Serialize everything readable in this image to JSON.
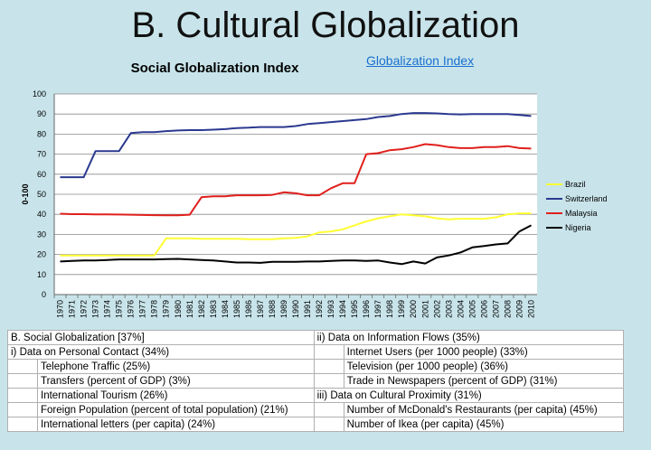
{
  "slide": {
    "title": "B. Cultural Globalization",
    "link": "Globalization Index"
  },
  "chart_data": {
    "type": "line",
    "title": "Social Globalization Index",
    "xlabel": "",
    "ylabel": "0-100",
    "ylim": [
      0,
      100
    ],
    "yticks": [
      0,
      10,
      20,
      30,
      40,
      50,
      60,
      70,
      80,
      90,
      100
    ],
    "grid": true,
    "legend_position": "right",
    "x": [
      "1970",
      "1971",
      "1972",
      "1973",
      "1974",
      "1975",
      "1976",
      "1977",
      "1978",
      "1979",
      "1980",
      "1981",
      "1982",
      "1983",
      "1984",
      "1985",
      "1986",
      "1987",
      "1988",
      "1989",
      "1990",
      "1991",
      "1992",
      "1993",
      "1994",
      "1995",
      "1996",
      "1997",
      "1998",
      "1999",
      "2000",
      "2001",
      "2002",
      "2003",
      "2004",
      "2005",
      "2006",
      "2007",
      "2008",
      "2009",
      "2010"
    ],
    "series": [
      {
        "name": "Brazil",
        "color": "#ffff33",
        "values": [
          19.5,
          19.5,
          19.5,
          19.5,
          19.5,
          19.5,
          19.5,
          19.5,
          19.5,
          28,
          28,
          28,
          27.8,
          27.8,
          27.8,
          27.8,
          27.6,
          27.6,
          27.6,
          28,
          28.3,
          29,
          31,
          31.5,
          32.5,
          34.5,
          36.5,
          38,
          39,
          40,
          39.5,
          39,
          38,
          37.5,
          37.8,
          37.8,
          37.8,
          38.5,
          40,
          40.5,
          40.5
        ]
      },
      {
        "name": "Switzerland",
        "color": "#2b3990",
        "values": [
          58.5,
          58.5,
          58.5,
          71.5,
          71.5,
          71.5,
          80.5,
          81,
          81,
          81.5,
          81.8,
          82,
          82,
          82.2,
          82.5,
          83,
          83.2,
          83.5,
          83.5,
          83.5,
          84,
          85,
          85.5,
          86,
          86.5,
          87,
          87.5,
          88.5,
          89,
          90,
          90.5,
          90.5,
          90.3,
          90,
          89.8,
          90,
          90,
          90,
          90,
          89.5,
          89
        ]
      },
      {
        "name": "Malaysia",
        "color": "#e0201c",
        "values": [
          40.3,
          40.1,
          40.1,
          40,
          40,
          39.9,
          39.8,
          39.7,
          39.6,
          39.5,
          39.5,
          39.8,
          48.5,
          49,
          49,
          49.5,
          49.5,
          49.5,
          49.7,
          51,
          50.5,
          49.5,
          49.5,
          53,
          55.5,
          55.5,
          70,
          70.5,
          72,
          72.5,
          73.5,
          75,
          74.5,
          73.5,
          73,
          73,
          73.5,
          73.5,
          74,
          73,
          72.8
        ]
      },
      {
        "name": "Nigeria",
        "color": "#000000",
        "values": [
          16.5,
          16.8,
          17,
          17,
          17.2,
          17.5,
          17.5,
          17.5,
          17.5,
          17.7,
          17.8,
          17.5,
          17.2,
          17,
          16.5,
          16,
          16,
          15.8,
          16.3,
          16.3,
          16.3,
          16.5,
          16.5,
          16.8,
          17,
          17,
          16.8,
          17,
          16,
          15.2,
          16.5,
          15.5,
          18.5,
          19.5,
          21,
          23.5,
          24.2,
          25,
          25.5,
          31.5,
          34.5
        ]
      }
    ]
  },
  "table": {
    "rows": [
      {
        "l_head": "B. Social Globalization [37%]",
        "l_item": "",
        "r_head": "ii) Data on Information Flows (35%)",
        "r_item": ""
      },
      {
        "l_head": "i) Data on Personal Contact (34%)",
        "l_item": "",
        "r_head": "",
        "r_item": "Internet Users (per 1000 people) (33%)"
      },
      {
        "l_head": "",
        "l_item": "Telephone Traffic (25%)",
        "r_head": "",
        "r_item": "Television (per 1000 people) (36%)"
      },
      {
        "l_head": "",
        "l_item": "Transfers (percent of GDP) (3%)",
        "r_head": "",
        "r_item": "Trade in Newspapers (percent of GDP) (31%)"
      },
      {
        "l_head": "",
        "l_item": "International Tourism (26%)",
        "r_head": "iii) Data on Cultural Proximity (31%)",
        "r_item": ""
      },
      {
        "l_head": "",
        "l_item": "Foreign Population (percent of total population) (21%)",
        "r_head": "",
        "r_item": "Number of McDonald's Restaurants (per capita) (45%)"
      },
      {
        "l_head": "",
        "l_item": "International letters (per capita) (24%)",
        "r_head": "",
        "r_item": "Number of Ikea (per capita) (45%)"
      }
    ]
  }
}
